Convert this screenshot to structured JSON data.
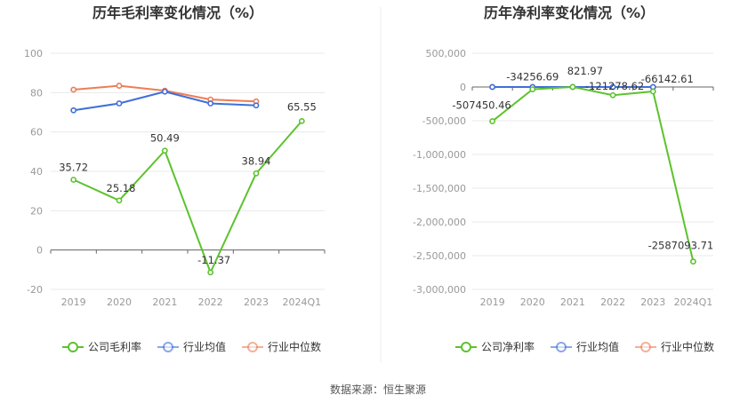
{
  "source": "数据来源：恒生聚源",
  "colors": {
    "company": "#5cc22d",
    "industry_avg": "#3f6fd8",
    "industry_median": "#ee7d55",
    "grid": "#e8e8e8",
    "axis": "#666666"
  },
  "chart_data": [
    {
      "type": "line",
      "title": "历年毛利率变化情况（%）",
      "categories": [
        "2019",
        "2020",
        "2021",
        "2022",
        "2023",
        "2024Q1"
      ],
      "ylim": [
        -20,
        100
      ],
      "yticks": [
        100,
        80,
        60,
        40,
        20,
        0,
        -20
      ],
      "ytick_labels": [
        "100",
        "80",
        "60",
        "40",
        "20",
        "0",
        "-20"
      ],
      "grid": true,
      "legend_position": "bottom",
      "series": [
        {
          "name": "公司毛利率",
          "color": "#5cc22d",
          "values": [
            35.72,
            25.18,
            50.49,
            -11.37,
            38.94,
            65.55
          ],
          "labels": [
            "35.72",
            "25.18",
            "50.49",
            "-11.37",
            "38.94",
            "65.55"
          ]
        },
        {
          "name": "行业均值",
          "color": "#3f6fd8",
          "values": [
            71,
            74.5,
            80.5,
            74.5,
            73.5,
            null
          ]
        },
        {
          "name": "行业中位数",
          "color": "#ee7d55",
          "values": [
            81.5,
            83.5,
            81,
            76.5,
            75.5,
            null
          ]
        }
      ]
    },
    {
      "type": "line",
      "title": "历年净利率变化情况（%）",
      "categories": [
        "2019",
        "2020",
        "2021",
        "2022",
        "2023",
        "2024Q1"
      ],
      "ylim": [
        -3000000,
        500000
      ],
      "yticks": [
        500000,
        0,
        -500000,
        -1000000,
        -1500000,
        -2000000,
        -2500000,
        -3000000
      ],
      "ytick_labels": [
        "500,000",
        "0",
        "-500,000",
        "-1,000,000",
        "-1,500,000",
        "-2,000,000",
        "-2,500,000",
        "-3,000,000"
      ],
      "grid": true,
      "legend_position": "bottom",
      "series": [
        {
          "name": "公司净利率",
          "color": "#5cc22d",
          "values": [
            -507450.46,
            -34256.69,
            821.97,
            -121278.62,
            -66142.61,
            -2587093.71
          ],
          "labels": [
            "-507450.46",
            "-34256.69",
            "821.97",
            "-121278.62",
            "-66142.61",
            "-2587093.71"
          ]
        },
        {
          "name": "行业均值",
          "color": "#3f6fd8",
          "values": [
            -5,
            0,
            3,
            -2,
            -4,
            null
          ]
        },
        {
          "name": "行业中位数",
          "color": "#ee7d55",
          "values": [
            5,
            6,
            7,
            4,
            3,
            null
          ]
        }
      ]
    }
  ]
}
